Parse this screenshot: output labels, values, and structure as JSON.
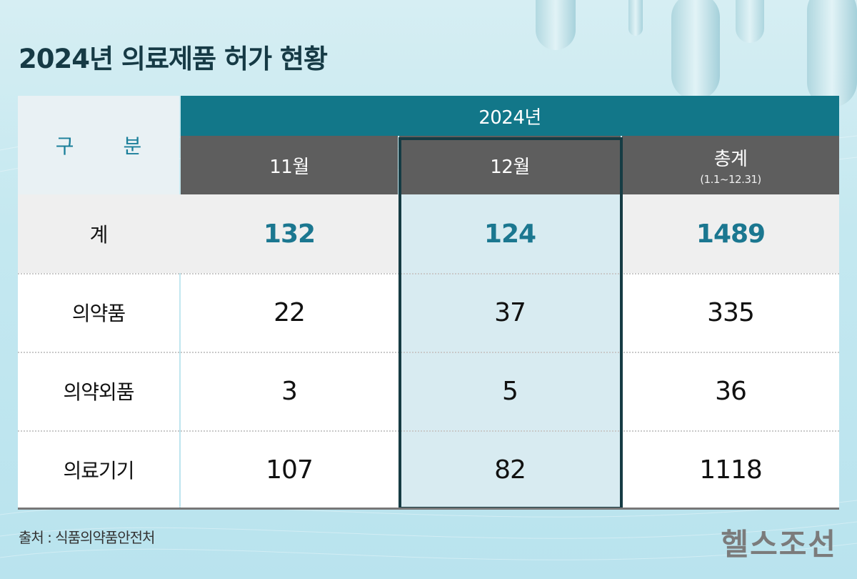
{
  "title": "2024년 의료제품 허가 현황",
  "table": {
    "corner_label": "구 분",
    "year_label": "2024년",
    "columns": [
      {
        "label": "11월",
        "sub": ""
      },
      {
        "label": "12월",
        "sub": ""
      },
      {
        "label": "총계",
        "sub": "(1.1~12.31)"
      }
    ],
    "rows": [
      {
        "label": "계",
        "values": [
          "132",
          "124",
          "1489"
        ],
        "emphasis": true
      },
      {
        "label": "의약품",
        "values": [
          "22",
          "37",
          "335"
        ],
        "emphasis": false
      },
      {
        "label": "의약외품",
        "values": [
          "3",
          "5",
          "36"
        ],
        "emphasis": false
      },
      {
        "label": "의료기기",
        "values": [
          "107",
          "82",
          "1118"
        ],
        "emphasis": false
      }
    ],
    "highlighted_column": "12월"
  },
  "source": "출처 : 식품의약품안전처",
  "logo": "헬스조선",
  "colors": {
    "header_teal": "#127789",
    "header_gray": "#5e5e5e",
    "total_text": "#1b7790",
    "highlight_border": "#163c44"
  }
}
